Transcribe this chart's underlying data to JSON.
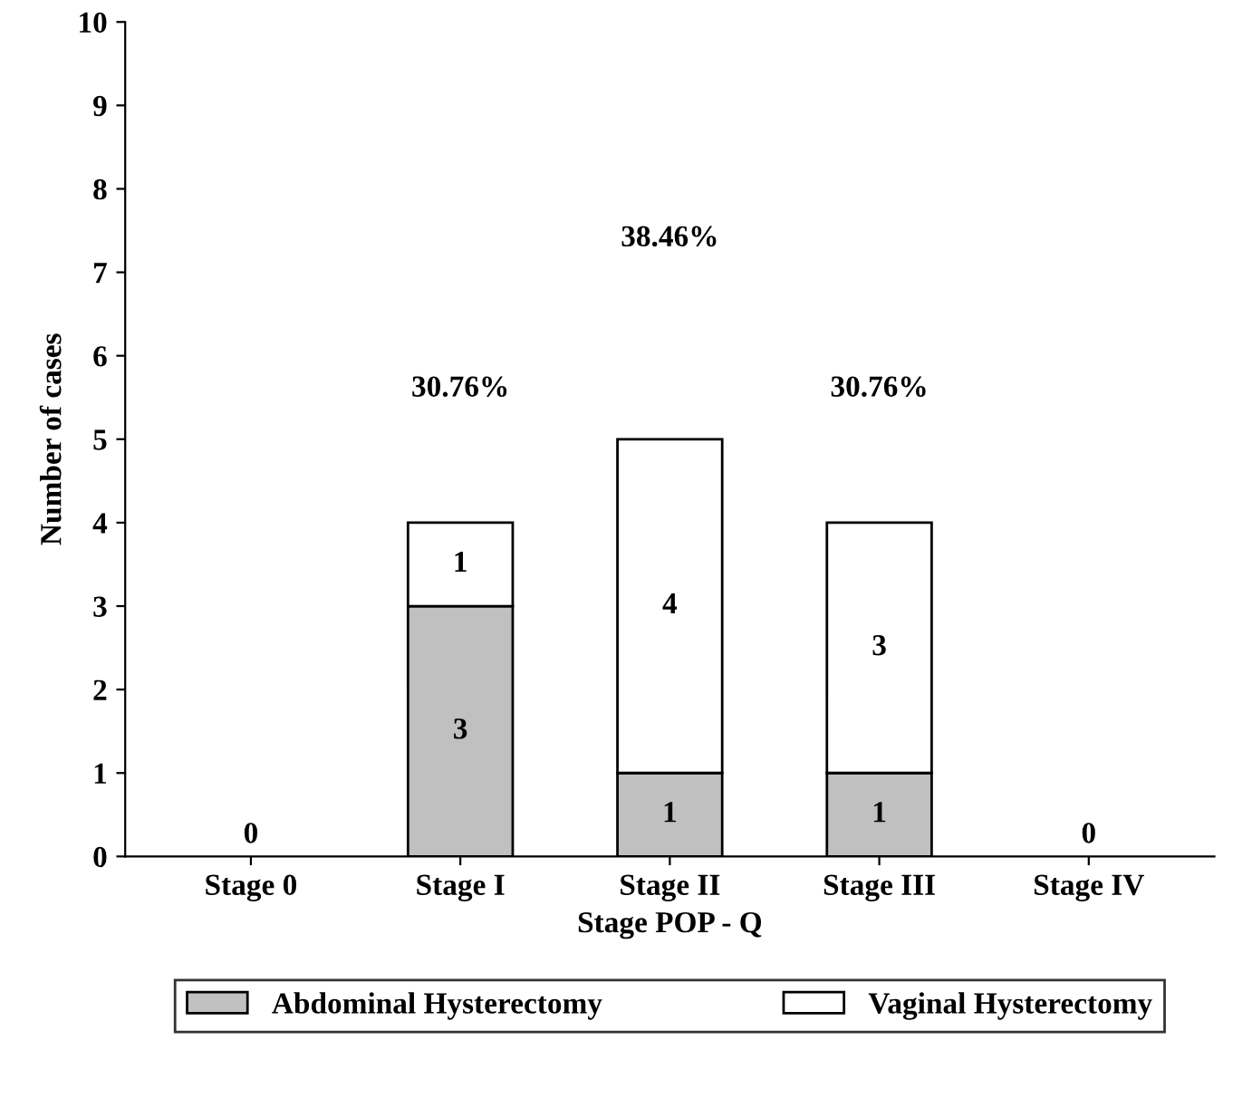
{
  "chart_data": {
    "type": "bar",
    "stacked": true,
    "xlabel": "Stage POP - Q",
    "ylabel": "Number of cases",
    "categories": [
      "Stage 0",
      "Stage I",
      "Stage II",
      "Stage III",
      "Stage IV"
    ],
    "series": [
      {
        "name": "Abdominal Hysterectomy",
        "color": "#c0c0c0",
        "values": [
          0,
          3,
          1,
          1,
          0
        ],
        "value_labels": [
          "0",
          "3",
          "1",
          "1",
          "0"
        ]
      },
      {
        "name": "Vaginal Hysterectomy",
        "color": "#ffffff",
        "values": [
          0,
          1,
          4,
          3,
          0
        ],
        "value_labels": [
          null,
          "1",
          "4",
          "3",
          null
        ]
      }
    ],
    "annotations": [
      "30.76%",
      "38.46%",
      "30.76%"
    ],
    "ylim": [
      0,
      10
    ],
    "yticks": [
      0,
      1,
      2,
      3,
      4,
      5,
      6,
      7,
      8,
      9,
      10
    ],
    "grid": false,
    "legend": "bottom"
  }
}
